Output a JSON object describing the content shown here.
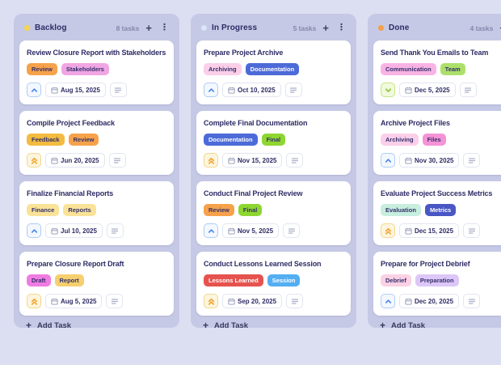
{
  "board": {
    "add_task": {
      "plus": "+",
      "label": "Add Task"
    },
    "header_icons": {
      "add": "+",
      "menu": "⋮"
    },
    "priorities": {
      "high": {
        "name": "high",
        "fg": "#4a86e8",
        "bg": "#f3f8ff",
        "border": "#aecdf6",
        "direction": "up",
        "chevrons": 1
      },
      "urgent": {
        "name": "urgent",
        "fg": "#f0a433",
        "bg": "#fdf5dd",
        "border": "#f3d88f",
        "direction": "up",
        "chevrons": 2
      },
      "low": {
        "name": "low",
        "fg": "#8ac43f",
        "bg": "#f1fadb",
        "border": "#c6e487",
        "direction": "down",
        "chevrons": 1
      }
    },
    "colors": {
      "page_bg": "#dcdff2",
      "column_bg": "#c6c9e5",
      "card_bg": "#ffffff",
      "title_text": "#2e2c66",
      "count_text": "#8289ad"
    },
    "columns": [
      {
        "name": "Backlog",
        "dot_color": "#f6d44d",
        "count": "8 tasks",
        "cards": [
          {
            "title": "Review Closure Report with Stakeholders",
            "priority": "high",
            "date": "Aug 15, 2025",
            "tags": [
              {
                "label": "Review",
                "bg": "#f6a24b",
                "fg": "#33306b"
              },
              {
                "label": "Stakeholders",
                "bg": "#f1a6e4",
                "fg": "#33306b"
              }
            ]
          },
          {
            "title": "Compile Project Feedback",
            "priority": "urgent",
            "date": "Jun 20, 2025",
            "tags": [
              {
                "label": "Feedback",
                "bg": "#f3bb3f",
                "fg": "#33306b"
              },
              {
                "label": "Review",
                "bg": "#f6a24b",
                "fg": "#33306b"
              }
            ]
          },
          {
            "title": "Finalize Financial Reports",
            "priority": "high",
            "date": "Jul 10, 2025",
            "tags": [
              {
                "label": "Finance",
                "bg": "#fae398",
                "fg": "#33306b"
              },
              {
                "label": "Reports",
                "bg": "#fae398",
                "fg": "#33306b"
              }
            ]
          },
          {
            "title": "Prepare Closure Report Draft",
            "priority": "urgent",
            "date": "Aug 5, 2025",
            "tags": [
              {
                "label": "Draft",
                "bg": "#f07ce2",
                "fg": "#33306b"
              },
              {
                "label": "Report",
                "bg": "#f6cf6e",
                "fg": "#33306b"
              }
            ]
          }
        ]
      },
      {
        "name": "In Progress",
        "dot_color": "#d9e6f8",
        "count": "5 tasks",
        "cards": [
          {
            "title": "Prepare Project Archive",
            "priority": "high",
            "date": "Oct 10, 2025",
            "tags": [
              {
                "label": "Archiving",
                "bg": "#fbcfe9",
                "fg": "#33306b"
              },
              {
                "label": "Documentation",
                "bg": "#4c6bd8",
                "fg": "#ffffff"
              }
            ]
          },
          {
            "title": "Complete Final Documentation",
            "priority": "urgent",
            "date": "Nov 15, 2025",
            "tags": [
              {
                "label": "Documentation",
                "bg": "#4c6bd8",
                "fg": "#ffffff"
              },
              {
                "label": "Final",
                "bg": "#8ed630",
                "fg": "#33306b"
              }
            ]
          },
          {
            "title": "Conduct Final Project Review",
            "priority": "high",
            "date": "Nov 5, 2025",
            "tags": [
              {
                "label": "Review",
                "bg": "#f6a24b",
                "fg": "#33306b"
              },
              {
                "label": "Final",
                "bg": "#8ed630",
                "fg": "#33306b"
              }
            ]
          },
          {
            "title": "Conduct Lessons Learned Session",
            "priority": "urgent",
            "date": "Sep 20, 2025",
            "tags": [
              {
                "label": "Lessons Learned",
                "bg": "#e6534e",
                "fg": "#ffffff"
              },
              {
                "label": "Session",
                "bg": "#54aef2",
                "fg": "#ffffff"
              }
            ]
          }
        ]
      },
      {
        "name": "Done",
        "dot_color": "#f5a04b",
        "count": "4 tasks",
        "cards": [
          {
            "title": "Send Thank You Emails to Team",
            "priority": "low",
            "date": "Dec 5, 2025",
            "tags": [
              {
                "label": "Communication",
                "bg": "#f8b3e4",
                "fg": "#33306b"
              },
              {
                "label": "Team",
                "bg": "#ace06b",
                "fg": "#33306b"
              }
            ]
          },
          {
            "title": "Archive Project Files",
            "priority": "high",
            "date": "Nov 30, 2025",
            "tags": [
              {
                "label": "Archiving",
                "bg": "#fbcfe9",
                "fg": "#33306b"
              },
              {
                "label": "Files",
                "bg": "#f493d6",
                "fg": "#33306b"
              }
            ]
          },
          {
            "title": "Evaluate Project Success Metrics",
            "priority": "urgent",
            "date": "Dec 15, 2025",
            "tags": [
              {
                "label": "Evaluation",
                "bg": "#c7eede",
                "fg": "#33306b"
              },
              {
                "label": "Metrics",
                "bg": "#4957c5",
                "fg": "#ffffff"
              }
            ]
          },
          {
            "title": "Prepare for Project Debrief",
            "priority": "high",
            "date": "Dec 20, 2025",
            "tags": [
              {
                "label": "Debrief",
                "bg": "#fbd1e5",
                "fg": "#33306b"
              },
              {
                "label": "Preparation",
                "bg": "#ddc7f8",
                "fg": "#33306b"
              }
            ]
          }
        ]
      }
    ]
  }
}
